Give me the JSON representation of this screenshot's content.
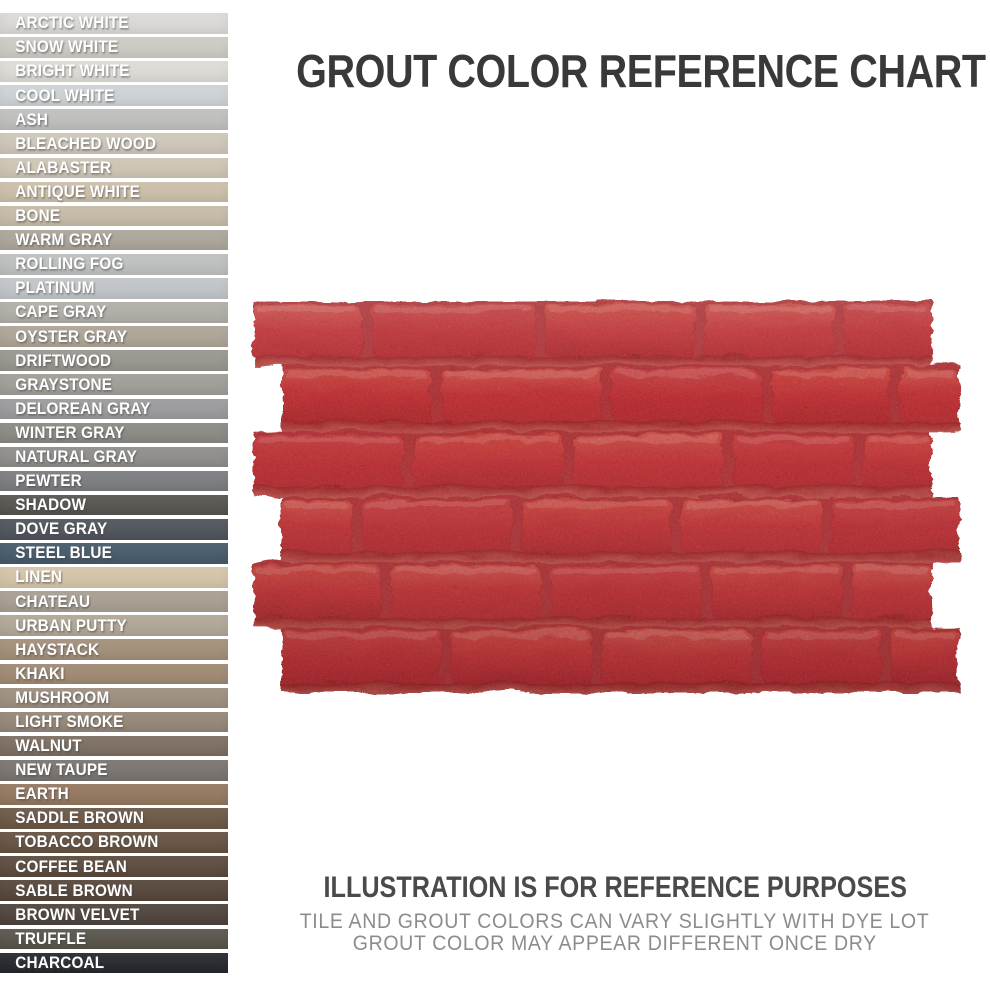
{
  "title": "GROUT COLOR REFERENCE CHART",
  "disclaimer": {
    "heading": "ILLUSTRATION IS FOR REFERENCE PURPOSES",
    "line1": "TILE AND GROUT COLORS CAN VARY SLIGHTLY WITH DYE LOT",
    "line2": "GROUT COLOR MAY APPEAR DIFFERENT ONCE DRY"
  },
  "ui_colors": {
    "background": "#ffffff",
    "title_text": "#393939",
    "heading_text": "#4a4a4a",
    "note_text": "#8c8c8c",
    "swatch_label_text": "#ffffff"
  },
  "illustration": {
    "name": "red-brick-stamp-tile",
    "brick_red_light": "#d7544a",
    "brick_red": "#c62a31",
    "brick_red_dark": "#b5222a",
    "mortar_red": "#ad2d33",
    "mortar_shadow": "#93161d",
    "mortar_light": "#c2574f"
  },
  "swatches": [
    {
      "name": "ARCTIC WHITE",
      "color": "#deddd9"
    },
    {
      "name": "SNOW WHITE",
      "color": "#d1cec7"
    },
    {
      "name": "BRIGHT WHITE",
      "color": "#e1dfd9"
    },
    {
      "name": "COOL WHITE",
      "color": "#d1d6d8"
    },
    {
      "name": "ASH",
      "color": "#c2c2c0"
    },
    {
      "name": "BLEACHED WOOD",
      "color": "#d1cabc"
    },
    {
      "name": "ALABASTER",
      "color": "#d1c8b7"
    },
    {
      "name": "ANTIQUE WHITE",
      "color": "#cfc2ac"
    },
    {
      "name": "BONE",
      "color": "#c9bea9"
    },
    {
      "name": "WARM GRAY",
      "color": "#aea89c"
    },
    {
      "name": "ROLLING FOG",
      "color": "#c0c3c1"
    },
    {
      "name": "PLATINUM",
      "color": "#c3c8ca"
    },
    {
      "name": "CAPE GRAY",
      "color": "#b3b1aa"
    },
    {
      "name": "OYSTER GRAY",
      "color": "#b0a798"
    },
    {
      "name": "DRIFTWOOD",
      "color": "#9b9791"
    },
    {
      "name": "GRAYSTONE",
      "color": "#a3a09b"
    },
    {
      "name": "DELOREAN GRAY",
      "color": "#9d9c9e"
    },
    {
      "name": "WINTER GRAY",
      "color": "#8d8b85"
    },
    {
      "name": "NATURAL GRAY",
      "color": "#908f8d"
    },
    {
      "name": "PEWTER",
      "color": "#7c7e81"
    },
    {
      "name": "SHADOW",
      "color": "#565550"
    },
    {
      "name": "DOVE GRAY",
      "color": "#4f555c"
    },
    {
      "name": "STEEL BLUE",
      "color": "#465b6b"
    },
    {
      "name": "LINEN",
      "color": "#d8c7ab"
    },
    {
      "name": "CHATEAU",
      "color": "#aaa194"
    },
    {
      "name": "URBAN PUTTY",
      "color": "#b3a998"
    },
    {
      "name": "HAYSTACK",
      "color": "#a5917b"
    },
    {
      "name": "KHAKI",
      "color": "#a28b74"
    },
    {
      "name": "MUSHROOM",
      "color": "#a09180"
    },
    {
      "name": "LIGHT SMOKE",
      "color": "#978979"
    },
    {
      "name": "WALNUT",
      "color": "#7e6f62"
    },
    {
      "name": "NEW TAUPE",
      "color": "#7b7571"
    },
    {
      "name": "EARTH",
      "color": "#967860"
    },
    {
      "name": "SADDLE BROWN",
      "color": "#6e5846"
    },
    {
      "name": "TOBACCO BROWN",
      "color": "#675341"
    },
    {
      "name": "COFFEE BEAN",
      "color": "#5d4b3d"
    },
    {
      "name": "SABLE BROWN",
      "color": "#57463a"
    },
    {
      "name": "BROWN VELVET",
      "color": "#4f443c"
    },
    {
      "name": "TRUFFLE",
      "color": "#59554b"
    },
    {
      "name": "CHARCOAL",
      "color": "#24272c"
    }
  ],
  "chart_data": {
    "type": "table",
    "title": "GROUT COLOR REFERENCE CHART",
    "columns": [
      "color_name",
      "swatch_hex"
    ],
    "rows": [
      [
        "ARCTIC WHITE",
        "#deddd9"
      ],
      [
        "SNOW WHITE",
        "#d1cec7"
      ],
      [
        "BRIGHT WHITE",
        "#e1dfd9"
      ],
      [
        "COOL WHITE",
        "#d1d6d8"
      ],
      [
        "ASH",
        "#c2c2c0"
      ],
      [
        "BLEACHED WOOD",
        "#d1cabc"
      ],
      [
        "ALABASTER",
        "#d1c8b7"
      ],
      [
        "ANTIQUE WHITE",
        "#cfc2ac"
      ],
      [
        "BONE",
        "#c9bea9"
      ],
      [
        "WARM GRAY",
        "#aea89c"
      ],
      [
        "ROLLING FOG",
        "#c0c3c1"
      ],
      [
        "PLATINUM",
        "#c3c8ca"
      ],
      [
        "CAPE GRAY",
        "#b3b1aa"
      ],
      [
        "OYSTER GRAY",
        "#b0a798"
      ],
      [
        "DRIFTWOOD",
        "#9b9791"
      ],
      [
        "GRAYSTONE",
        "#a3a09b"
      ],
      [
        "DELOREAN GRAY",
        "#9d9c9e"
      ],
      [
        "WINTER GRAY",
        "#8d8b85"
      ],
      [
        "NATURAL GRAY",
        "#908f8d"
      ],
      [
        "PEWTER",
        "#7c7e81"
      ],
      [
        "SHADOW",
        "#565550"
      ],
      [
        "DOVE GRAY",
        "#4f555c"
      ],
      [
        "STEEL BLUE",
        "#465b6b"
      ],
      [
        "LINEN",
        "#d8c7ab"
      ],
      [
        "CHATEAU",
        "#aaa194"
      ],
      [
        "URBAN PUTTY",
        "#b3a998"
      ],
      [
        "HAYSTACK",
        "#a5917b"
      ],
      [
        "KHAKI",
        "#a28b74"
      ],
      [
        "MUSHROOM",
        "#a09180"
      ],
      [
        "LIGHT SMOKE",
        "#978979"
      ],
      [
        "WALNUT",
        "#7e6f62"
      ],
      [
        "NEW TAUPE",
        "#7b7571"
      ],
      [
        "EARTH",
        "#967860"
      ],
      [
        "SADDLE BROWN",
        "#6e5846"
      ],
      [
        "TOBACCO BROWN",
        "#675341"
      ],
      [
        "COFFEE BEAN",
        "#5d4b3d"
      ],
      [
        "SABLE BROWN",
        "#57463a"
      ],
      [
        "BROWN VELVET",
        "#4f443c"
      ],
      [
        "TRUFFLE",
        "#59554b"
      ],
      [
        "CHARCOAL",
        "#24272c"
      ]
    ]
  }
}
